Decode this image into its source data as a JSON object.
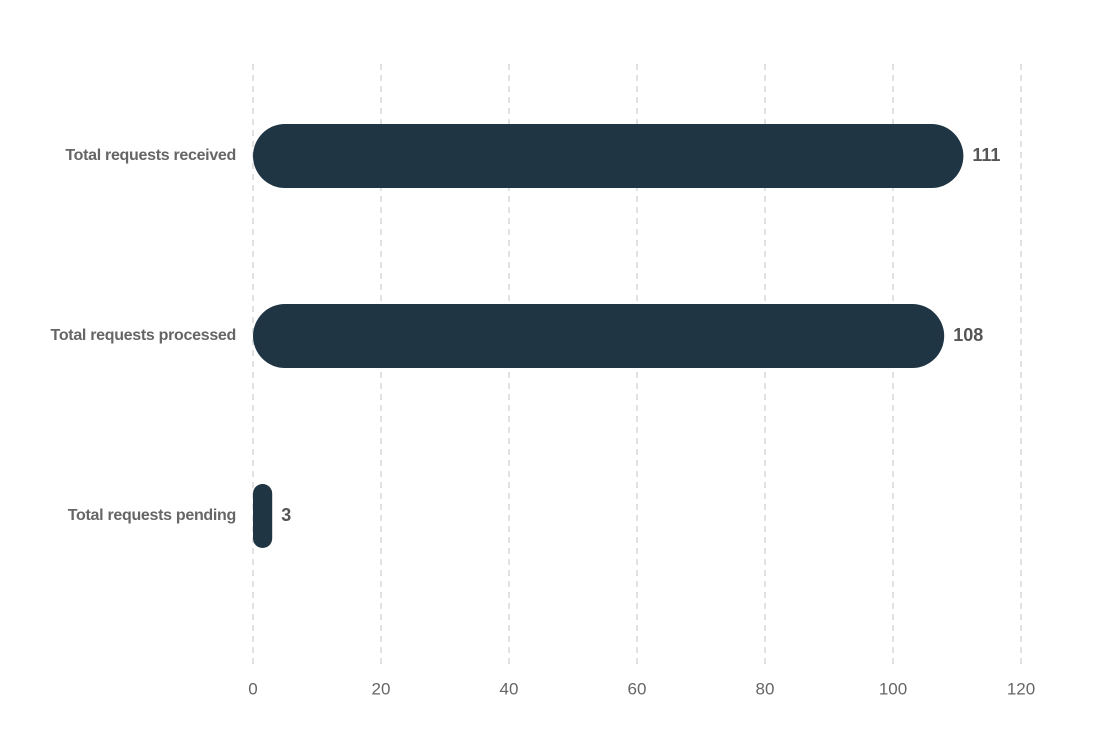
{
  "chart_data": {
    "type": "barh",
    "categories": [
      "Total requests received",
      "Total requests processed",
      "Total requests pending"
    ],
    "values": [
      111,
      108,
      3
    ],
    "color": "#1f3543",
    "xlim": [
      0,
      120
    ],
    "xticks": [
      0,
      20,
      40,
      60,
      80,
      100,
      120
    ],
    "grid": true
  }
}
